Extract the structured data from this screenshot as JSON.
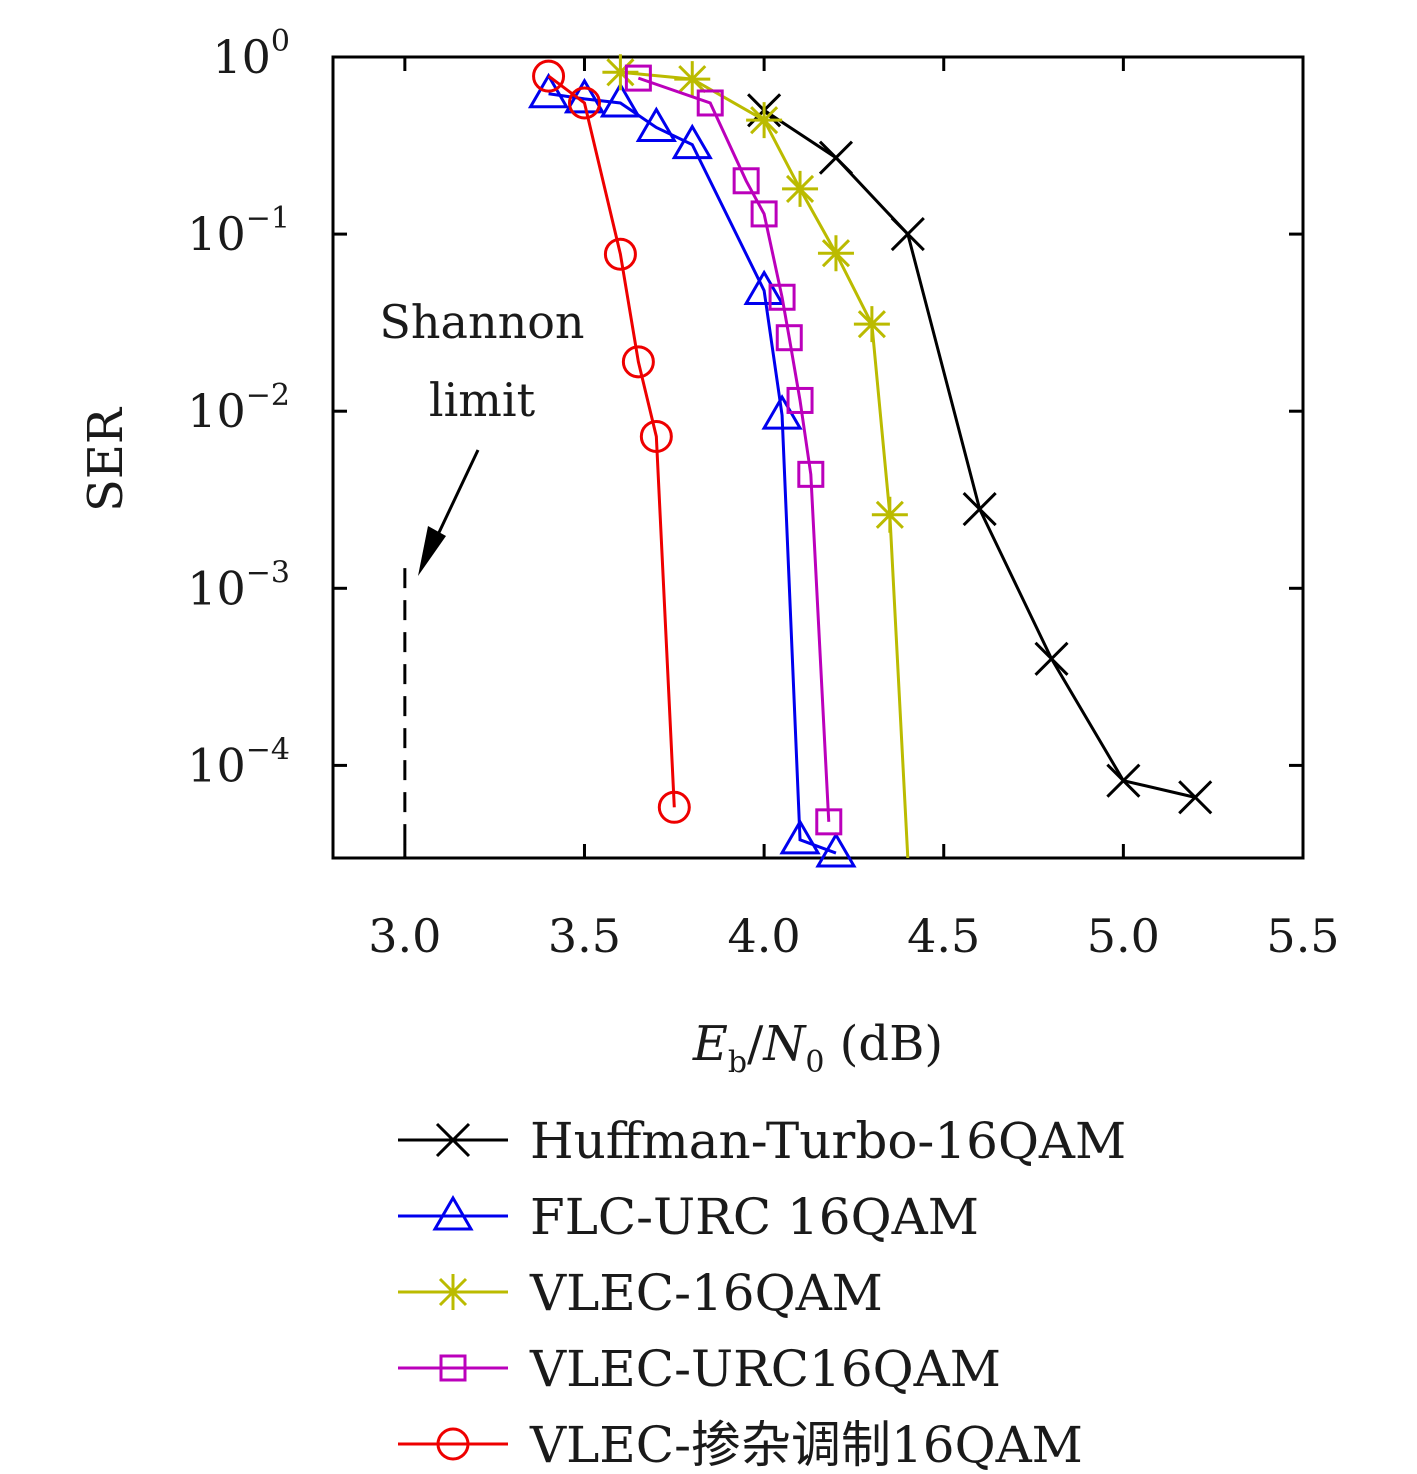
{
  "chart_data": {
    "type": "line",
    "ylabel": "SER",
    "xlabel": {
      "E": "E",
      "b": "b",
      "slash": "/",
      "N": "N",
      "zero": "0",
      "unit": "(dB)"
    },
    "xlim": [
      2.8,
      5.5
    ],
    "ylim": [
      3e-05,
      1
    ],
    "yscale": "log",
    "x_ticks": [
      3.0,
      3.5,
      4.0,
      4.5,
      5.0,
      5.5
    ],
    "x_tick_labels": [
      "3.0",
      "3.5",
      "4.0",
      "4.5",
      "5.0",
      "5.5"
    ],
    "y_ticks": [
      1,
      0.1,
      0.01,
      0.001,
      0.0001
    ],
    "y_tick_labels": [
      {
        "base": "10",
        "exp": "0"
      },
      {
        "base": "10",
        "exp": "−1"
      },
      {
        "base": "10",
        "exp": "−2"
      },
      {
        "base": "10",
        "exp": "−3"
      },
      {
        "base": "10",
        "exp": "−4"
      }
    ],
    "grid": false,
    "legend_position": "below",
    "annotation": {
      "line1": "Shannon",
      "line2": "limit",
      "x": 3.0,
      "y_top": 0.0013
    },
    "series": [
      {
        "name": "Huffman-Turbo-16QAM",
        "color": "#000000",
        "marker": "x",
        "x": [
          4.0,
          4.2,
          4.4,
          4.6,
          4.8,
          5.0,
          5.2
        ],
        "y": [
          0.5,
          0.27,
          0.1,
          0.0028,
          0.0004,
          8.2e-05,
          6.6e-05
        ]
      },
      {
        "name": "FLC-URC 16QAM",
        "color": "#0000ee",
        "marker": "triangle",
        "x": [
          3.4,
          3.5,
          3.6,
          3.7,
          3.8,
          4.0,
          4.05,
          4.1,
          4.2
        ],
        "y": [
          0.62,
          0.58,
          0.55,
          0.4,
          0.32,
          0.048,
          0.0095,
          3.8e-05,
          3.2e-05
        ]
      },
      {
        "name": "VLEC-16QAM",
        "color": "#bbbb00",
        "marker": "asterisk",
        "x": [
          3.6,
          3.8,
          4.0,
          4.1,
          4.2,
          4.3,
          4.35,
          4.4
        ],
        "y": [
          0.82,
          0.75,
          0.44,
          0.18,
          0.078,
          0.031,
          0.0026,
          3e-05
        ]
      },
      {
        "name": "VLEC-URC16QAM",
        "color": "#bb00bb",
        "marker": "square",
        "x": [
          3.65,
          3.85,
          3.95,
          4.0,
          4.05,
          4.07,
          4.1,
          4.13,
          4.18
        ],
        "y": [
          0.76,
          0.55,
          0.2,
          0.13,
          0.044,
          0.026,
          0.0115,
          0.0044,
          4.8e-05
        ]
      },
      {
        "name": "VLEC-掺杂调制16QAM",
        "color": "#ee0000",
        "marker": "circle",
        "x": [
          3.4,
          3.5,
          3.6,
          3.65,
          3.7,
          3.75
        ],
        "y": [
          0.78,
          0.55,
          0.077,
          0.019,
          0.0072,
          5.8e-05
        ]
      }
    ]
  }
}
